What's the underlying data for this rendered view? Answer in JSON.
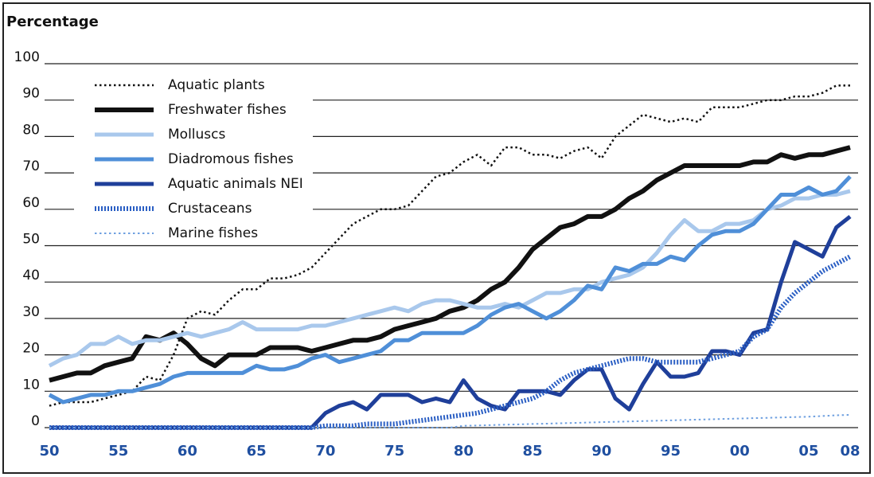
{
  "chart_data": {
    "type": "line",
    "title": "Percentage",
    "x": [
      1950,
      1951,
      1952,
      1953,
      1954,
      1955,
      1956,
      1957,
      1958,
      1959,
      1960,
      1961,
      1962,
      1963,
      1964,
      1965,
      1966,
      1967,
      1968,
      1969,
      1970,
      1971,
      1972,
      1973,
      1974,
      1975,
      1976,
      1977,
      1978,
      1979,
      1980,
      1981,
      1982,
      1983,
      1984,
      1985,
      1986,
      1987,
      1988,
      1989,
      1990,
      1991,
      1992,
      1993,
      1994,
      1995,
      1996,
      1997,
      1998,
      1999,
      2000,
      2001,
      2002,
      2003,
      2004,
      2005,
      2006,
      2007,
      2008
    ],
    "xlim": [
      1950,
      2008
    ],
    "xticks": [
      {
        "value": 1950,
        "label": "50"
      },
      {
        "value": 1955,
        "label": "55"
      },
      {
        "value": 1960,
        "label": "60"
      },
      {
        "value": 1965,
        "label": "65"
      },
      {
        "value": 1970,
        "label": "70"
      },
      {
        "value": 1975,
        "label": "75"
      },
      {
        "value": 1980,
        "label": "80"
      },
      {
        "value": 1985,
        "label": "85"
      },
      {
        "value": 1990,
        "label": "90"
      },
      {
        "value": 1995,
        "label": "95"
      },
      {
        "value": 2000,
        "label": "00"
      },
      {
        "value": 2005,
        "label": "05"
      },
      {
        "value": 2008,
        "label": "08"
      }
    ],
    "ylim": [
      0,
      100
    ],
    "yticks": [
      0,
      10,
      20,
      30,
      40,
      50,
      60,
      70,
      80,
      90,
      100
    ],
    "grid": true,
    "legend": "upper left",
    "series": [
      {
        "name": "Aquatic plants",
        "color": "#111111",
        "line_style": "dotted",
        "values": [
          6,
          7,
          7,
          7,
          8,
          9,
          10,
          14,
          13,
          20,
          30,
          32,
          31,
          35,
          38,
          38,
          41,
          41,
          42,
          44,
          48,
          52,
          56,
          58,
          60,
          60,
          61,
          65,
          69,
          70,
          73,
          75,
          72,
          77,
          77,
          75,
          75,
          74,
          76,
          77,
          74,
          80,
          83,
          86,
          85,
          84,
          85,
          84,
          88,
          88,
          88,
          89,
          90,
          90,
          91,
          91,
          92,
          94,
          94
        ]
      },
      {
        "name": "Freshwater fishes",
        "color": "#111111",
        "line_style": "solid",
        "values": [
          13,
          14,
          15,
          15,
          17,
          18,
          19,
          25,
          24,
          26,
          23,
          19,
          17,
          20,
          20,
          20,
          22,
          22,
          22,
          21,
          22,
          23,
          24,
          24,
          25,
          27,
          28,
          29,
          30,
          32,
          33,
          35,
          38,
          40,
          44,
          49,
          52,
          55,
          56,
          58,
          58,
          60,
          63,
          65,
          68,
          70,
          72,
          72,
          72,
          72,
          72,
          73,
          73,
          75,
          74,
          75,
          75,
          76,
          77
        ]
      },
      {
        "name": "Molluscs",
        "color": "#a9c8ec",
        "line_style": "solid",
        "values": [
          17,
          19,
          20,
          23,
          23,
          25,
          23,
          24,
          24,
          25,
          26,
          25,
          26,
          27,
          29,
          27,
          27,
          27,
          27,
          28,
          28,
          29,
          30,
          31,
          32,
          33,
          32,
          34,
          35,
          35,
          34,
          33,
          33,
          34,
          33,
          35,
          37,
          37,
          38,
          38,
          40,
          41,
          42,
          44,
          48,
          53,
          57,
          54,
          54,
          56,
          56,
          57,
          60,
          61,
          63,
          63,
          64,
          64,
          65
        ]
      },
      {
        "name": "Diadromous fishes",
        "color": "#4f8fd8",
        "line_style": "solid",
        "values": [
          9,
          7,
          8,
          9,
          9,
          10,
          10,
          11,
          12,
          14,
          15,
          15,
          15,
          15,
          15,
          17,
          16,
          16,
          17,
          19,
          20,
          18,
          19,
          20,
          21,
          24,
          24,
          26,
          26,
          26,
          26,
          28,
          31,
          33,
          34,
          32,
          30,
          32,
          35,
          39,
          38,
          44,
          43,
          45,
          45,
          47,
          46,
          50,
          53,
          54,
          54,
          56,
          60,
          64,
          64,
          66,
          64,
          65,
          69
        ]
      },
      {
        "name": "Aquatic animals NEI",
        "color": "#1f3f9a",
        "line_style": "solid",
        "values": [
          0,
          0,
          0,
          0,
          0,
          0,
          0,
          0,
          0,
          0,
          0,
          0,
          0,
          0,
          0,
          0,
          0,
          0,
          0,
          0,
          4,
          6,
          7,
          5,
          9,
          9,
          9,
          7,
          8,
          7,
          13,
          8,
          6,
          5,
          10,
          10,
          10,
          9,
          13,
          16,
          16,
          8,
          5,
          12,
          18,
          14,
          14,
          15,
          21,
          21,
          20,
          26,
          27,
          40,
          51,
          49,
          47,
          55,
          58
        ]
      },
      {
        "name": "Crustaceans",
        "color": "#2b5fc4",
        "line_style": "dotted",
        "values": [
          0,
          0,
          0,
          0,
          0,
          0,
          0,
          0,
          0,
          0,
          0,
          0,
          0,
          0,
          0,
          0,
          0,
          0,
          0,
          0,
          0.5,
          0.5,
          0.5,
          1,
          1,
          1,
          1.5,
          2,
          2.5,
          3,
          3.5,
          4,
          5,
          6,
          7,
          8,
          10,
          13,
          15,
          16,
          17,
          18,
          19,
          19,
          18,
          18,
          18,
          18,
          19,
          20,
          21,
          25,
          27,
          33,
          37,
          40,
          43,
          45,
          47
        ]
      },
      {
        "name": "Marine fishes",
        "color": "#6fa0e0",
        "line_style": "dotted",
        "values": [
          0,
          0,
          0,
          0,
          0,
          0,
          0,
          0,
          0,
          0,
          0,
          0,
          0,
          0,
          0,
          0,
          0,
          0,
          0,
          0,
          0,
          0,
          0,
          0,
          0,
          0,
          0,
          0,
          0,
          0,
          0.5,
          0.6,
          0.7,
          0.8,
          0.9,
          1,
          1.1,
          1.2,
          1.3,
          1.4,
          1.5,
          1.6,
          1.7,
          1.8,
          1.9,
          2,
          2.1,
          2.2,
          2.3,
          2.4,
          2.5,
          2.6,
          2.7,
          2.8,
          2.9,
          3,
          3.2,
          3.4,
          3.5
        ]
      }
    ]
  }
}
